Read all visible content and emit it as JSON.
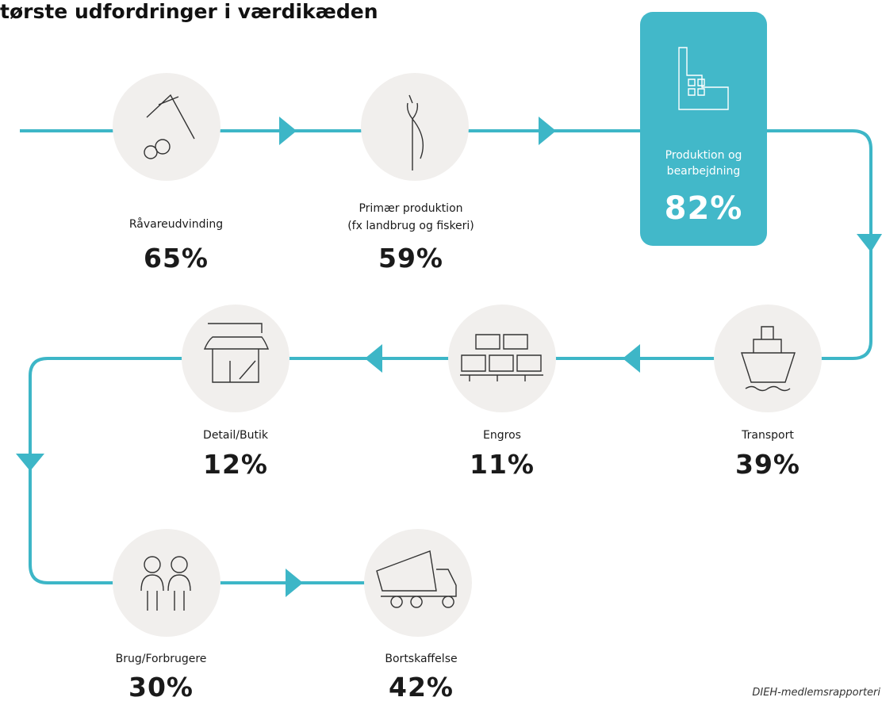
{
  "header": {
    "title": "tørste udfordringer i værdikæden"
  },
  "nodes": [
    {
      "label": "Råvareudvinding",
      "value": "65%"
    },
    {
      "label": "Primær produktion\n(fx landbrug og fiskeri)",
      "value": "59%"
    },
    {
      "label": "Produktion og\nbearbejdning",
      "value": "82%"
    },
    {
      "label": "Transport",
      "value": "39%"
    },
    {
      "label": "Engros",
      "value": "11%"
    },
    {
      "label": "Detail/Butik",
      "value": "12%"
    },
    {
      "label": "Brug/Forbrugere",
      "value": "30%"
    },
    {
      "label": "Bortskaffelse",
      "value": "42%"
    }
  ],
  "source": "DIEH-medlemsrapporteri"
}
